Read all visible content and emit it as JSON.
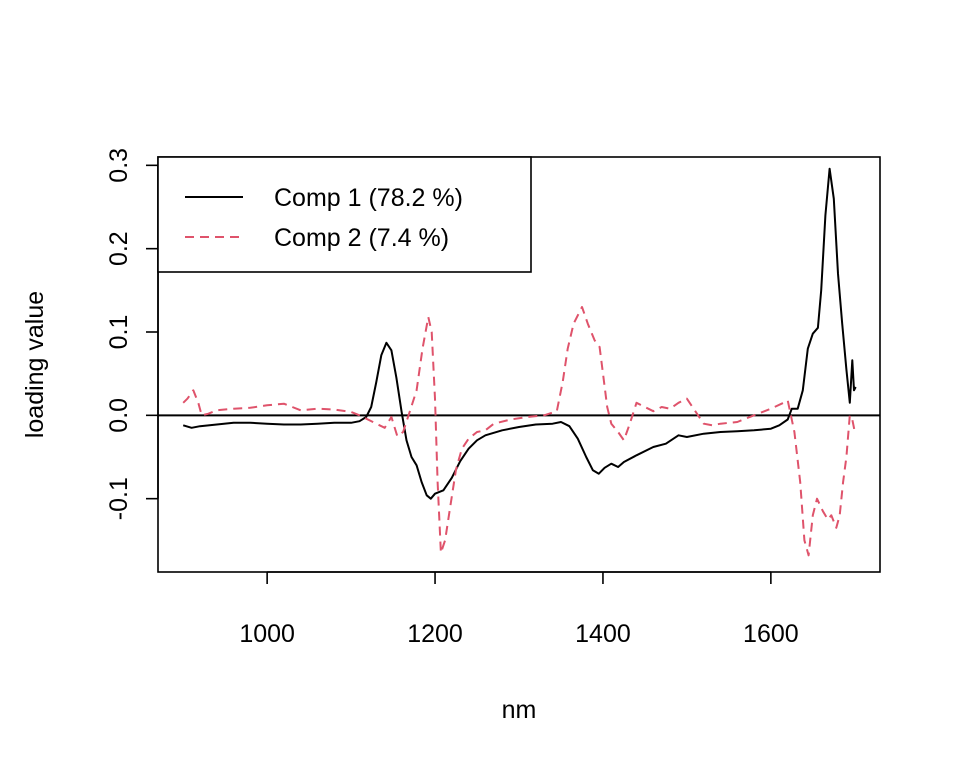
{
  "chart_data": {
    "type": "line",
    "title": "",
    "xlabel": "nm",
    "ylabel": "loading value",
    "xlim": [
      870,
      1730
    ],
    "ylim": [
      -0.188,
      0.31
    ],
    "x_ticks": [
      1000,
      1200,
      1400,
      1600
    ],
    "y_ticks": [
      -0.1,
      0.0,
      0.1,
      0.2,
      0.3
    ],
    "x_tick_labels": [
      "1000",
      "1200",
      "1400",
      "1600"
    ],
    "y_tick_labels": [
      "-0.1",
      "0.0",
      "0.1",
      "0.2",
      "0.3"
    ],
    "reference_line_y": 0.0,
    "legend_position": "top-left",
    "series": [
      {
        "name": "Comp 1 (78.2 %)",
        "color": "#000000",
        "dash": "solid",
        "points": [
          [
            900,
            -0.012
          ],
          [
            910,
            -0.015
          ],
          [
            920,
            -0.013
          ],
          [
            940,
            -0.011
          ],
          [
            960,
            -0.009
          ],
          [
            980,
            -0.009
          ],
          [
            1000,
            -0.01
          ],
          [
            1020,
            -0.011
          ],
          [
            1040,
            -0.011
          ],
          [
            1060,
            -0.01
          ],
          [
            1080,
            -0.009
          ],
          [
            1100,
            -0.009
          ],
          [
            1110,
            -0.007
          ],
          [
            1118,
            -0.002
          ],
          [
            1124,
            0.01
          ],
          [
            1130,
            0.04
          ],
          [
            1136,
            0.072
          ],
          [
            1142,
            0.087
          ],
          [
            1148,
            0.078
          ],
          [
            1154,
            0.045
          ],
          [
            1160,
            0.005
          ],
          [
            1166,
            -0.03
          ],
          [
            1172,
            -0.05
          ],
          [
            1178,
            -0.06
          ],
          [
            1184,
            -0.08
          ],
          [
            1190,
            -0.096
          ],
          [
            1195,
            -0.1
          ],
          [
            1200,
            -0.094
          ],
          [
            1210,
            -0.09
          ],
          [
            1220,
            -0.075
          ],
          [
            1230,
            -0.055
          ],
          [
            1240,
            -0.04
          ],
          [
            1250,
            -0.03
          ],
          [
            1260,
            -0.024
          ],
          [
            1280,
            -0.018
          ],
          [
            1300,
            -0.014
          ],
          [
            1320,
            -0.011
          ],
          [
            1340,
            -0.01
          ],
          [
            1350,
            -0.008
          ],
          [
            1360,
            -0.013
          ],
          [
            1370,
            -0.028
          ],
          [
            1380,
            -0.05
          ],
          [
            1388,
            -0.066
          ],
          [
            1395,
            -0.07
          ],
          [
            1402,
            -0.063
          ],
          [
            1410,
            -0.058
          ],
          [
            1418,
            -0.062
          ],
          [
            1425,
            -0.056
          ],
          [
            1440,
            -0.048
          ],
          [
            1460,
            -0.038
          ],
          [
            1475,
            -0.034
          ],
          [
            1490,
            -0.024
          ],
          [
            1500,
            -0.026
          ],
          [
            1520,
            -0.022
          ],
          [
            1540,
            -0.02
          ],
          [
            1560,
            -0.019
          ],
          [
            1580,
            -0.018
          ],
          [
            1600,
            -0.016
          ],
          [
            1610,
            -0.012
          ],
          [
            1620,
            -0.005
          ],
          [
            1625,
            0.008
          ],
          [
            1632,
            0.008
          ],
          [
            1638,
            0.03
          ],
          [
            1644,
            0.08
          ],
          [
            1650,
            0.098
          ],
          [
            1656,
            0.105
          ],
          [
            1660,
            0.15
          ],
          [
            1665,
            0.24
          ],
          [
            1670,
            0.296
          ],
          [
            1675,
            0.26
          ],
          [
            1680,
            0.17
          ],
          [
            1685,
            0.11
          ],
          [
            1690,
            0.055
          ],
          [
            1694,
            0.015
          ],
          [
            1697,
            0.066
          ],
          [
            1699,
            0.03
          ],
          [
            1701,
            0.034
          ]
        ]
      },
      {
        "name": "Comp 2 (7.4 %)",
        "color": "#DF536B",
        "dash": "dashed",
        "points": [
          [
            900,
            0.015
          ],
          [
            905,
            0.02
          ],
          [
            912,
            0.03
          ],
          [
            918,
            0.015
          ],
          [
            922,
            0.0
          ],
          [
            930,
            0.002
          ],
          [
            940,
            0.006
          ],
          [
            960,
            0.008
          ],
          [
            980,
            0.009
          ],
          [
            1000,
            0.012
          ],
          [
            1020,
            0.014
          ],
          [
            1030,
            0.01
          ],
          [
            1040,
            0.006
          ],
          [
            1060,
            0.008
          ],
          [
            1080,
            0.007
          ],
          [
            1100,
            0.004
          ],
          [
            1110,
            0.0
          ],
          [
            1120,
            -0.005
          ],
          [
            1130,
            -0.01
          ],
          [
            1140,
            -0.015
          ],
          [
            1148,
            -0.002
          ],
          [
            1155,
            -0.025
          ],
          [
            1162,
            -0.02
          ],
          [
            1170,
            0.005
          ],
          [
            1178,
            0.03
          ],
          [
            1185,
            0.08
          ],
          [
            1192,
            0.118
          ],
          [
            1196,
            0.1
          ],
          [
            1200,
            0.02
          ],
          [
            1203,
            -0.08
          ],
          [
            1207,
            -0.165
          ],
          [
            1212,
            -0.15
          ],
          [
            1218,
            -0.11
          ],
          [
            1225,
            -0.065
          ],
          [
            1232,
            -0.04
          ],
          [
            1240,
            -0.028
          ],
          [
            1250,
            -0.02
          ],
          [
            1260,
            -0.018
          ],
          [
            1270,
            -0.01
          ],
          [
            1290,
            -0.005
          ],
          [
            1310,
            -0.002
          ],
          [
            1330,
            0.0
          ],
          [
            1345,
            0.005
          ],
          [
            1352,
            0.04
          ],
          [
            1358,
            0.08
          ],
          [
            1365,
            0.11
          ],
          [
            1375,
            0.13
          ],
          [
            1382,
            0.11
          ],
          [
            1390,
            0.09
          ],
          [
            1396,
            0.082
          ],
          [
            1400,
            0.05
          ],
          [
            1405,
            0.01
          ],
          [
            1410,
            -0.01
          ],
          [
            1418,
            -0.02
          ],
          [
            1425,
            -0.03
          ],
          [
            1432,
            -0.01
          ],
          [
            1440,
            0.015
          ],
          [
            1450,
            0.01
          ],
          [
            1460,
            0.005
          ],
          [
            1470,
            0.01
          ],
          [
            1480,
            0.008
          ],
          [
            1490,
            0.015
          ],
          [
            1500,
            0.02
          ],
          [
            1510,
            0.005
          ],
          [
            1520,
            -0.01
          ],
          [
            1530,
            -0.012
          ],
          [
            1540,
            -0.01
          ],
          [
            1560,
            -0.008
          ],
          [
            1580,
            0.0
          ],
          [
            1600,
            0.008
          ],
          [
            1615,
            0.015
          ],
          [
            1620,
            0.018
          ],
          [
            1628,
            -0.02
          ],
          [
            1635,
            -0.08
          ],
          [
            1640,
            -0.15
          ],
          [
            1645,
            -0.168
          ],
          [
            1650,
            -0.12
          ],
          [
            1655,
            -0.1
          ],
          [
            1662,
            -0.115
          ],
          [
            1668,
            -0.125
          ],
          [
            1672,
            -0.12
          ],
          [
            1678,
            -0.135
          ],
          [
            1682,
            -0.12
          ],
          [
            1686,
            -0.08
          ],
          [
            1690,
            -0.05
          ],
          [
            1694,
            0.0
          ],
          [
            1697,
            -0.005
          ],
          [
            1700,
            -0.02
          ]
        ]
      }
    ]
  }
}
